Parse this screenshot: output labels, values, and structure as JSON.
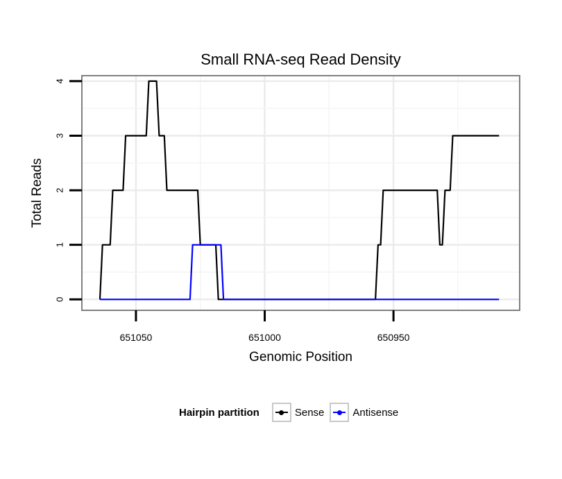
{
  "chart_data": {
    "type": "line",
    "title": "Small RNA-seq Read Density",
    "xlabel": "Genomic Position",
    "ylabel": "Total Reads",
    "xlim": [
      651071,
      650901
    ],
    "ylim": [
      -0.2,
      4.1
    ],
    "x_reversed": true,
    "grid": true,
    "xticks": [
      651050,
      651000,
      650950
    ],
    "xtick_labels": [
      "651050",
      "651000",
      "650950"
    ],
    "yticks": [
      0,
      1,
      2,
      3,
      4
    ],
    "ytick_labels": [
      "0",
      "1",
      "2",
      "3",
      "4"
    ],
    "legend": {
      "title": "Hairpin partition",
      "position": "bottom"
    },
    "series": [
      {
        "name": "Sense",
        "color": "#000000",
        "points": [
          [
            651064,
            0
          ],
          [
            651063,
            1
          ],
          [
            651060,
            1
          ],
          [
            651059,
            2
          ],
          [
            651055,
            2
          ],
          [
            651054,
            3
          ],
          [
            651046,
            3
          ],
          [
            651045,
            4
          ],
          [
            651042,
            4
          ],
          [
            651041,
            3
          ],
          [
            651039,
            3
          ],
          [
            651038,
            2
          ],
          [
            651026,
            2
          ],
          [
            651025,
            1
          ],
          [
            651019,
            1
          ],
          [
            651018,
            0
          ],
          [
            650957,
            0
          ],
          [
            650956,
            1
          ],
          [
            650955,
            1
          ],
          [
            650954,
            2
          ],
          [
            650933,
            2
          ],
          [
            650932,
            1
          ],
          [
            650931,
            1
          ],
          [
            650930,
            2
          ],
          [
            650928,
            2
          ],
          [
            650927,
            3
          ],
          [
            650909,
            3
          ]
        ]
      },
      {
        "name": "Antisense",
        "color": "#0000ff",
        "points": [
          [
            651064,
            0
          ],
          [
            651029,
            0
          ],
          [
            651028,
            1
          ],
          [
            651017,
            1
          ],
          [
            651016,
            0
          ],
          [
            650909,
            0
          ]
        ]
      }
    ]
  }
}
